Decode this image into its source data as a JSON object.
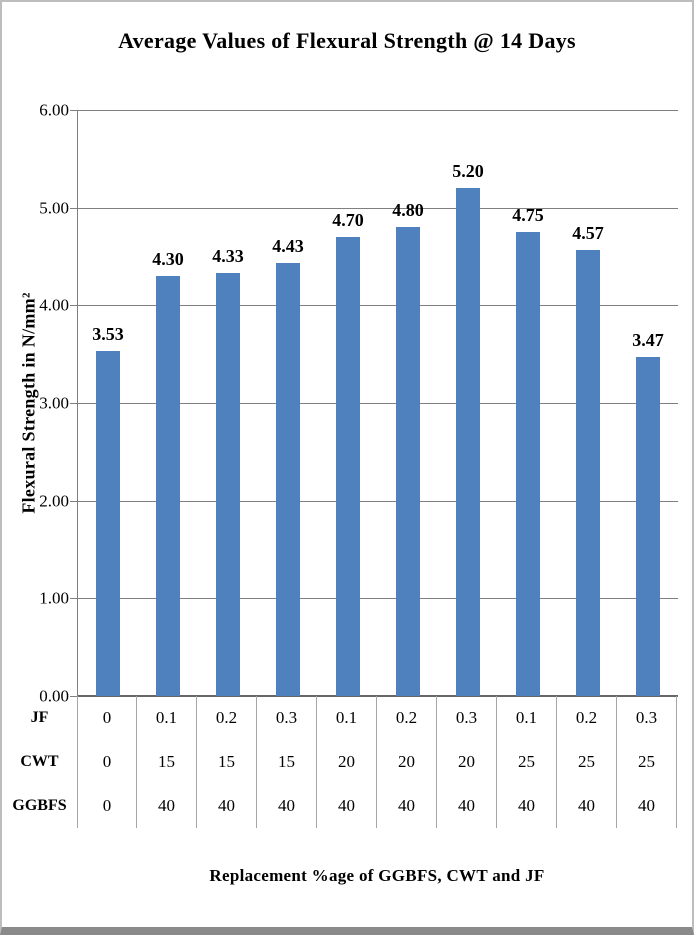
{
  "frame": {
    "background": "#ffffff",
    "border_color": "#bdbdbd",
    "bottom_strip_color": "#8a8a8a"
  },
  "chart_data": {
    "type": "bar",
    "title": "Average Values of Flexural Strength @ 14 Days",
    "ylabel": "Flexural Strength in N/mm²",
    "xlabel": "Replacement %age of GGBFS, CWT  and JF",
    "ylim": [
      0,
      6
    ],
    "ytick_step": 1.0,
    "ytick_labels": [
      "6.00",
      "5.00",
      "4.00",
      "3.00",
      "2.00",
      "1.00",
      "0.00"
    ],
    "grid": true,
    "legend": "none",
    "bar_color": "#4e81bd",
    "grid_color": "#7f7f7f",
    "table_divider_color": "#a6a6a6",
    "series": [
      {
        "name": "Flexural Strength",
        "values": [
          3.53,
          4.3,
          4.33,
          4.43,
          4.7,
          4.8,
          5.2,
          4.75,
          4.57,
          3.47
        ]
      }
    ],
    "data_labels": [
      "3.53",
      "4.30",
      "4.33",
      "4.43",
      "4.70",
      "4.80",
      "5.20",
      "4.75",
      "4.57",
      "3.47"
    ],
    "category_table": {
      "rows": [
        {
          "label": "JF",
          "values": [
            "0",
            "0.1",
            "0.2",
            "0.3",
            "0.1",
            "0.2",
            "0.3",
            "0.1",
            "0.2",
            "0.3"
          ]
        },
        {
          "label": "CWT",
          "values": [
            "0",
            "15",
            "15",
            "15",
            "20",
            "20",
            "20",
            "25",
            "25",
            "25"
          ]
        },
        {
          "label": "GGBFS",
          "values": [
            "0",
            "40",
            "40",
            "40",
            "40",
            "40",
            "40",
            "40",
            "40",
            "40"
          ]
        }
      ]
    }
  }
}
